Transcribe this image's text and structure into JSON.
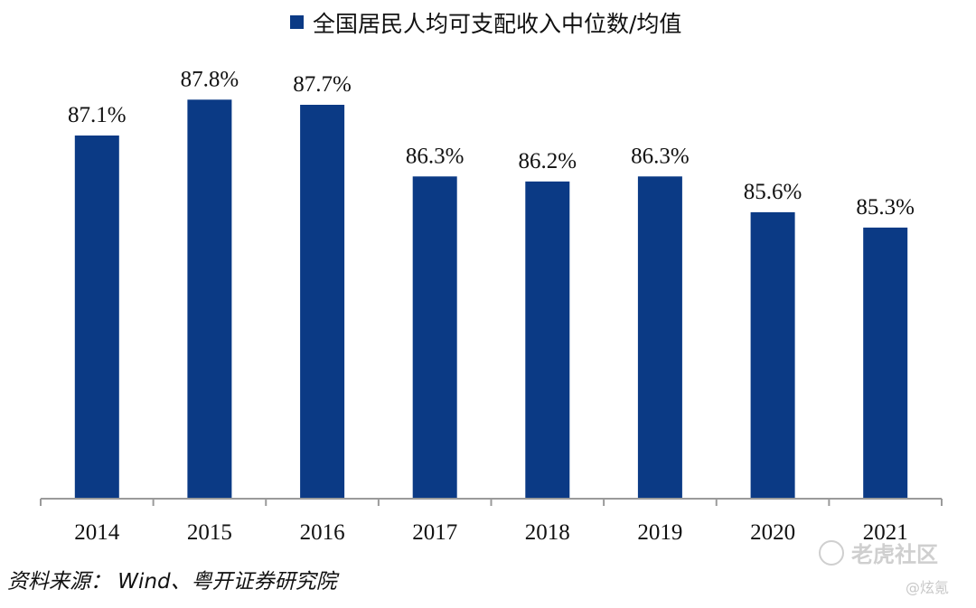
{
  "chart_data": {
    "type": "bar",
    "title": "",
    "legend": {
      "label": "全国居民人均可支配收入中位数/均值",
      "color": "#0b3a85",
      "placement": "top"
    },
    "categories": [
      "2014",
      "2015",
      "2016",
      "2017",
      "2018",
      "2019",
      "2020",
      "2021"
    ],
    "values": [
      87.1,
      87.8,
      87.7,
      86.3,
      86.2,
      86.3,
      85.6,
      85.3
    ],
    "value_labels": [
      "87.1%",
      "87.8%",
      "87.7%",
      "86.3%",
      "86.2%",
      "86.3%",
      "85.6%",
      "85.3%"
    ],
    "xlabel": "",
    "ylabel": "",
    "ylim": [
      80.0,
      88.3
    ],
    "grid": false,
    "bar_color": "#0b3a85"
  },
  "source": {
    "label": "资料来源： Wind、粤开证券研究院"
  },
  "watermark": {
    "text": "老虎社区",
    "handle": "@炫氪"
  }
}
